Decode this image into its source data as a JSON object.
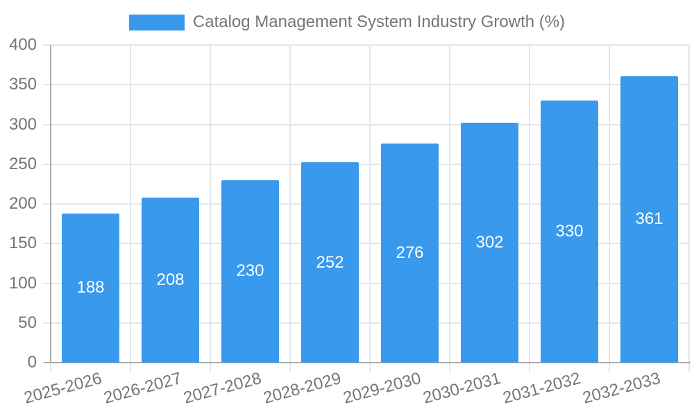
{
  "chart_data": {
    "type": "bar",
    "title": "Catalog Management System Industry Growth (%)",
    "categories": [
      "2025-2026",
      "2026-2027",
      "2027-2028",
      "2028-2029",
      "2029-2030",
      "2030-2031",
      "2031-2032",
      "2032-2033"
    ],
    "values": [
      188,
      208,
      230,
      252,
      276,
      302,
      330,
      361
    ],
    "xlabel": "",
    "ylabel": "",
    "ylim": [
      0,
      400
    ],
    "yticks": [
      0,
      50,
      100,
      150,
      200,
      250,
      300,
      350,
      400
    ],
    "grid": true,
    "legend_position": "top-center",
    "bar_labels_shown": true,
    "colors": {
      "bar": "#3999ec",
      "axis_text": "#757575",
      "bar_label": "#ffffff",
      "gridline": "#e6e6e6",
      "axis_line": "#ababab",
      "background": "#ffffff"
    }
  },
  "legend": {
    "label": "Catalog Management System Industry Growth (%)"
  }
}
